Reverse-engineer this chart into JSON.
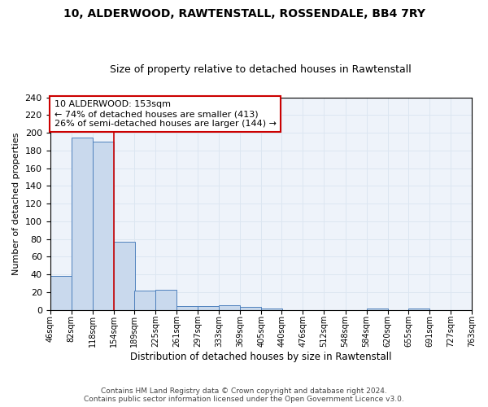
{
  "title": "10, ALDERWOOD, RAWTENSTALL, ROSSENDALE, BB4 7RY",
  "subtitle": "Size of property relative to detached houses in Rawtenstall",
  "xlabel": "Distribution of detached houses by size in Rawtenstall",
  "ylabel": "Number of detached properties",
  "footnote1": "Contains HM Land Registry data © Crown copyright and database right 2024.",
  "footnote2": "Contains public sector information licensed under the Open Government Licence v3.0.",
  "bar_color": "#c9d9ed",
  "bar_edge_color": "#4f81bd",
  "vline_color": "#cc0000",
  "vline_x": 154,
  "annotation_line1": "10 ALDERWOOD: 153sqm",
  "annotation_line2": "← 74% of detached houses are smaller (413)",
  "annotation_line3": "26% of semi-detached houses are larger (144) →",
  "annotation_box_color": "#ffffff",
  "annotation_box_edge_color": "#cc0000",
  "bins": [
    46,
    82,
    118,
    154,
    189,
    225,
    261,
    297,
    333,
    369,
    405,
    440,
    476,
    512,
    548,
    584,
    620,
    655,
    691,
    727,
    763
  ],
  "counts": [
    38,
    195,
    190,
    77,
    22,
    23,
    4,
    4,
    5,
    3,
    2,
    0,
    0,
    0,
    0,
    2,
    0,
    2,
    0,
    0
  ],
  "xlabels": [
    "46sqm",
    "82sqm",
    "118sqm",
    "154sqm",
    "189sqm",
    "225sqm",
    "261sqm",
    "297sqm",
    "333sqm",
    "369sqm",
    "405sqm",
    "440sqm",
    "476sqm",
    "512sqm",
    "548sqm",
    "584sqm",
    "620sqm",
    "655sqm",
    "691sqm",
    "727sqm",
    "763sqm"
  ],
  "ylim": [
    0,
    240
  ],
  "yticks": [
    0,
    20,
    40,
    60,
    80,
    100,
    120,
    140,
    160,
    180,
    200,
    220,
    240
  ],
  "grid_color": "#dce6f1",
  "background_color": "#eef3fa",
  "title_fontsize": 10,
  "subtitle_fontsize": 9,
  "ylabel_fontsize": 8,
  "xlabel_fontsize": 8.5,
  "footnote_fontsize": 6.5,
  "annotation_fontsize": 8
}
